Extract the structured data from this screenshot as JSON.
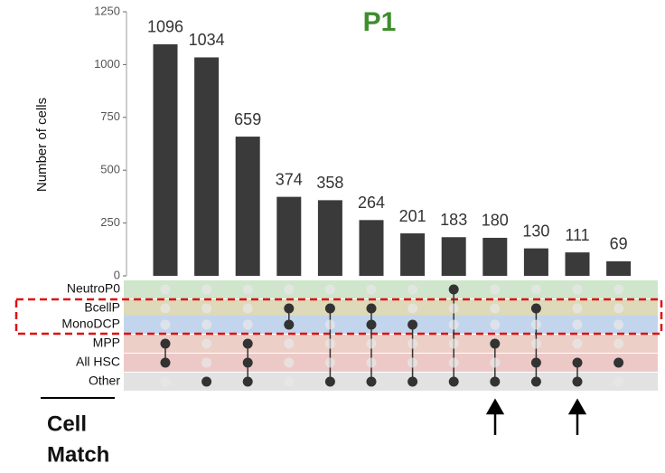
{
  "chart_data": {
    "type": "upset",
    "title": "P1",
    "ylabel": "Number of cells",
    "values": [
      1096,
      1034,
      659,
      374,
      358,
      264,
      201,
      183,
      180,
      130,
      111,
      69
    ],
    "color": "#3a3a3a",
    "ylim": [
      0,
      1250
    ],
    "yticks": [
      0,
      250,
      500,
      750,
      1000,
      1250
    ],
    "sets": [
      "NeutroP0",
      "BcellP",
      "MonoDCP",
      "MPP",
      "All HSC",
      "Other"
    ],
    "set_colors": [
      "#cfe5cc",
      "#ddd9b9",
      "#c3d5ec",
      "#eccfc6",
      "#ecc9c7",
      "#e2e2e2"
    ],
    "matrix": [
      [
        0,
        0,
        0,
        1,
        1,
        0
      ],
      [
        0,
        0,
        0,
        0,
        0,
        1
      ],
      [
        0,
        0,
        0,
        1,
        1,
        1
      ],
      [
        0,
        1,
        1,
        0,
        0,
        0
      ],
      [
        0,
        1,
        0,
        0,
        0,
        1
      ],
      [
        0,
        1,
        1,
        0,
        0,
        1
      ],
      [
        0,
        0,
        1,
        0,
        0,
        1
      ],
      [
        1,
        0,
        0,
        0,
        0,
        1
      ],
      [
        0,
        0,
        0,
        1,
        0,
        1
      ],
      [
        0,
        1,
        0,
        0,
        1,
        1
      ],
      [
        0,
        0,
        0,
        0,
        1,
        1
      ],
      [
        0,
        0,
        0,
        0,
        1,
        0
      ]
    ],
    "annotation": [
      "Cell",
      "Match"
    ]
  }
}
